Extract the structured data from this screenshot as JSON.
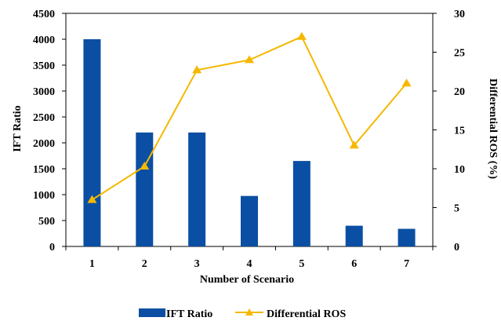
{
  "chart_data": {
    "type": "bar",
    "categories": [
      "1",
      "2",
      "3",
      "4",
      "5",
      "6",
      "7"
    ],
    "series": [
      {
        "name": "IFT Ratio",
        "type": "bar",
        "axis": "left",
        "color": "#0a4fa3",
        "values": [
          4000,
          2200,
          2200,
          975,
          1650,
          400,
          340
        ]
      },
      {
        "name": "Differential ROS",
        "type": "line",
        "axis": "right",
        "color": "#f5b800",
        "marker": "triangle",
        "values": [
          6,
          10.3,
          22.7,
          24,
          27,
          13,
          21
        ]
      }
    ],
    "xlabel": "Number of Scenario",
    "ylabel": "IFT Ratio",
    "y2label": "Differential ROS (%)",
    "ylim": [
      0,
      4500
    ],
    "y2lim": [
      0,
      30
    ],
    "yticks": [
      "0",
      "500",
      "1000",
      "1500",
      "2000",
      "2500",
      "3000",
      "3500",
      "4000",
      "4500"
    ],
    "y2ticks": [
      "0",
      "5",
      "10",
      "15",
      "20",
      "25",
      "30"
    ],
    "grid": false,
    "legend": "bottom"
  }
}
